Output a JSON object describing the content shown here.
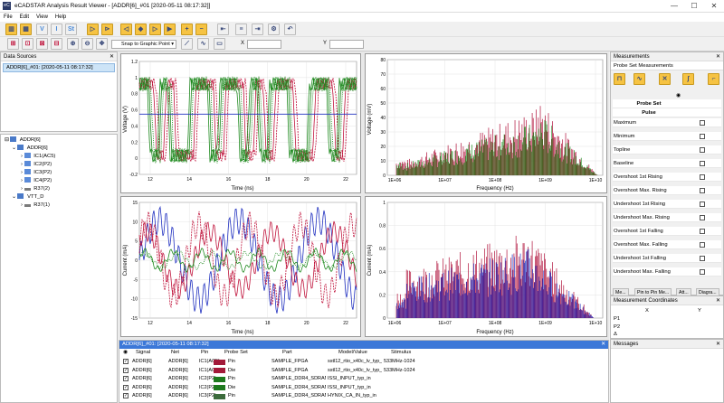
{
  "window": {
    "title": "eCADSTAR Analysis Result Viewer - [ADDR[6]_#01 [2020-05-11 08:17:32]]",
    "app_icon_label": "eC",
    "minimize": "—",
    "maximize": "☐",
    "close": "✕"
  },
  "menu": [
    "File",
    "Edit",
    "View",
    "Help"
  ],
  "toolbar": {
    "snap_label": "Snap to Graphic Point",
    "x_label": "X",
    "y_label": "Y"
  },
  "data_sources": {
    "header": "Data Sources",
    "item": "ADDR[6]_#01: [2020-05-11 08:17:32]"
  },
  "tree": [
    {
      "label": "ADDR[6]",
      "level": 0,
      "toggle": "⊟"
    },
    {
      "label": "ADDR[6]",
      "level": 1,
      "toggle": "⌄"
    },
    {
      "label": "IC1(AC5)",
      "level": 2,
      "toggle": "›"
    },
    {
      "label": "IC2(P2)",
      "level": 2,
      "toggle": "›"
    },
    {
      "label": "IC3(P2)",
      "level": 2,
      "toggle": "›"
    },
    {
      "label": "IC4(P2)",
      "level": 2,
      "toggle": "›"
    },
    {
      "label": "R37(2)",
      "level": 2,
      "toggle": "›"
    },
    {
      "label": "VTT_D",
      "level": 1,
      "toggle": "⌄"
    },
    {
      "label": "R37(1)",
      "level": 2,
      "toggle": "›"
    }
  ],
  "plots": {
    "voltage_time": {
      "ylabel": "Voltage (V)",
      "xlabel": "Time (ns)",
      "yticks": [
        "1.2",
        "1",
        "0.8",
        "0.6",
        "0.4",
        "0.2",
        "0",
        "-0.2"
      ],
      "xticks": [
        "12",
        "14",
        "16",
        "18",
        "20",
        "22"
      ]
    },
    "voltage_freq": {
      "ylabel": "Voltage (mV)",
      "xlabel": "Frequency (Hz)",
      "yticks": [
        "80",
        "70",
        "60",
        "50",
        "40",
        "30",
        "20",
        "10",
        "0"
      ],
      "xticks": [
        "1E+06",
        "1E+07",
        "1E+08",
        "1E+09",
        "1E+10"
      ]
    },
    "current_time": {
      "ylabel": "Current (mA)",
      "xlabel": "Time (ns)",
      "yticks": [
        "15",
        "10",
        "5",
        "0",
        "-5",
        "-10",
        "-15"
      ],
      "xticks": [
        "12",
        "14",
        "16",
        "18",
        "20",
        "22"
      ]
    },
    "current_freq": {
      "ylabel": "Current (mA)",
      "xlabel": "Frequency (Hz)",
      "yticks": [
        "1",
        "0.8",
        "0.6",
        "0.4",
        "0.2",
        "0"
      ],
      "xticks": [
        "1E+06",
        "1E+07",
        "1E+08",
        "1E+09",
        "1E+10"
      ]
    }
  },
  "table": {
    "tab": "ADDR[6]_#01: [2020-05-11 08:17:32]",
    "columns": [
      "Signal",
      "Net",
      "Pin",
      "Probe Set",
      "Part",
      "Model/Value",
      "Stimulus"
    ],
    "rows": [
      {
        "signal": "ADDR[6]",
        "net": "ADDR[6]",
        "pin": "IC1(AC5)",
        "probe": "Pin",
        "color": "#a31a3a",
        "part": "SAMPLE_FPGA",
        "model": "sstl12_rtio_x40c_lv_typ_out",
        "stimulus": "533MHz-1024"
      },
      {
        "signal": "ADDR[6]",
        "net": "ADDR[6]",
        "pin": "IC1(AC5)",
        "probe": "Die",
        "color": "#a31a3a",
        "part": "SAMPLE_FPGA",
        "model": "sstl12_rtio_x40c_lv_typ_out",
        "stimulus": "533MHz-1024"
      },
      {
        "signal": "ADDR[6]",
        "net": "ADDR[6]",
        "pin": "IC2(P2)",
        "probe": "Pin",
        "color": "#1e7a1e",
        "part": "SAMPLE_DDR4_SDRAM_MODULE",
        "model": "ISSI_INPUT_typ_in",
        "stimulus": ""
      },
      {
        "signal": "ADDR[6]",
        "net": "ADDR[6]",
        "pin": "IC2(P2)",
        "probe": "Die",
        "color": "#1e7a1e",
        "part": "SAMPLE_DDR4_SDRAM_MODULE",
        "model": "ISSI_INPUT_typ_in",
        "stimulus": ""
      },
      {
        "signal": "ADDR[6]",
        "net": "ADDR[6]",
        "pin": "IC3(P2)",
        "probe": "Pin",
        "color": "#3c6b3c",
        "part": "SAMPLE_DDR4_SDRAM_MODULE",
        "model": "HYNIX_CA_IN_typ_in",
        "stimulus": ""
      }
    ]
  },
  "measurements": {
    "header": "Measurements",
    "subheader": "Probe Set Measurements",
    "probe_set_label": "Probe Set",
    "pulse_label": "Pulse",
    "items": [
      "Maximum",
      "Minimum",
      "Topline",
      "Baseline",
      "Overshoot 1st Rising",
      "Overshoot Max. Rising",
      "Undershoot 1st Rising",
      "Undershoot Max. Rising",
      "Overshoot 1st Falling",
      "Overshoot Max. Falling",
      "Undershoot 1st Falling",
      "Undershoot Max. Falling"
    ],
    "tabs": [
      "Me...",
      "Pin to Pin Me...",
      "Att...",
      "Diagra..."
    ]
  },
  "coords": {
    "header": "Measurement Coordinates",
    "x": "X",
    "y": "Y",
    "rows": [
      "P1",
      "P2",
      "Δ"
    ]
  },
  "messages": {
    "header": "Messages"
  },
  "colors": {
    "red": "#c0143c",
    "green": "#1f8a1f",
    "blue": "#2030c0",
    "accent": "#3c78d8"
  }
}
